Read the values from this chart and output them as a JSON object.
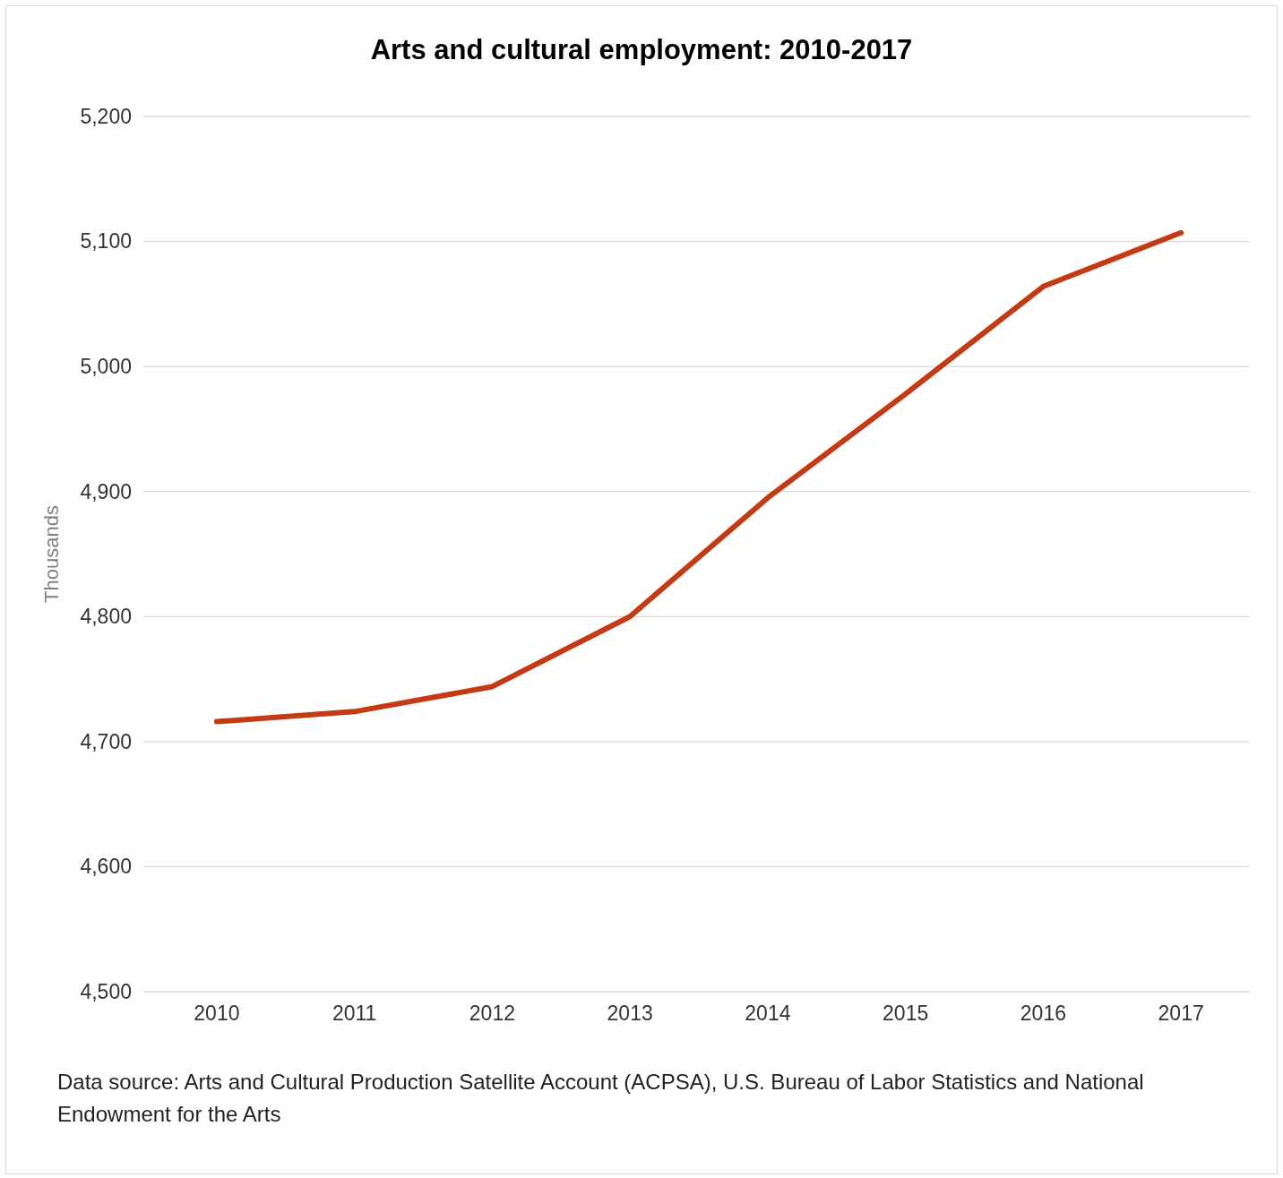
{
  "chart_data": {
    "type": "line",
    "title": "Arts and cultural employment: 2010-2017",
    "ylabel": "Thousands",
    "categories": [
      "2010",
      "2011",
      "2012",
      "2013",
      "2014",
      "2015",
      "2016",
      "2017"
    ],
    "series": [
      {
        "color": "#c23b14",
        "values": [
          4716,
          4724,
          4744,
          4800,
          4895,
          4978,
          5064,
          5107
        ]
      }
    ],
    "ylim": [
      4500,
      5200
    ],
    "yticks": [
      {
        "value": 4500,
        "label": "4,500"
      },
      {
        "value": 4600,
        "label": "4,600"
      },
      {
        "value": 4700,
        "label": "4,700"
      },
      {
        "value": 4800,
        "label": "4,800"
      },
      {
        "value": 4900,
        "label": "4,900"
      },
      {
        "value": 5000,
        "label": "5,000"
      },
      {
        "value": 5100,
        "label": "5,100"
      },
      {
        "value": 5200,
        "label": "5,200"
      }
    ],
    "grid": "y",
    "marker": "none",
    "line_style": "solid",
    "annotations": [
      "Data source: Arts and Cultural Production Satellite Account (ACPSA), U.S. Bureau of Labor Statistics and National Endowment for the Arts"
    ]
  }
}
